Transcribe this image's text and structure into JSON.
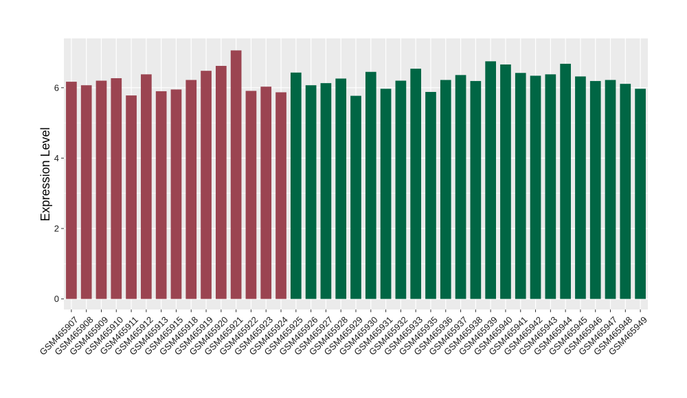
{
  "chart_data": {
    "type": "bar",
    "title": "",
    "xlabel": "",
    "ylabel": "Expression Level",
    "ylim": [
      -0.3,
      7.4
    ],
    "yticks": [
      0,
      2,
      4,
      6
    ],
    "grid": true,
    "legend": "none",
    "categories": [
      "GSM465907",
      "GSM465908",
      "GSM465909",
      "GSM465910",
      "GSM465911",
      "GSM465912",
      "GSM465913",
      "GSM465915",
      "GSM465918",
      "GSM465919",
      "GSM465920",
      "GSM465921",
      "GSM465922",
      "GSM465923",
      "GSM465924",
      "GSM465925",
      "GSM465926",
      "GSM465927",
      "GSM465928",
      "GSM465929",
      "GSM465930",
      "GSM465931",
      "GSM465932",
      "GSM465933",
      "GSM465935",
      "GSM465936",
      "GSM465937",
      "GSM465938",
      "GSM465939",
      "GSM465940",
      "GSM465941",
      "GSM465942",
      "GSM465943",
      "GSM465944",
      "GSM465945",
      "GSM465946",
      "GSM465947",
      "GSM465948",
      "GSM465949"
    ],
    "values": [
      6.17,
      6.07,
      6.2,
      6.27,
      5.78,
      6.38,
      5.9,
      5.95,
      6.22,
      6.48,
      6.62,
      7.06,
      5.91,
      6.03,
      5.87,
      6.43,
      6.07,
      6.13,
      6.26,
      5.77,
      6.45,
      5.97,
      6.2,
      6.54,
      5.88,
      6.22,
      6.36,
      6.19,
      6.75,
      6.66,
      6.42,
      6.34,
      6.38,
      6.68,
      6.32,
      6.19,
      6.22,
      6.11,
      5.97
    ],
    "group_sizes": [
      15,
      24
    ],
    "colors": [
      "#9b4451",
      "#006644"
    ],
    "panel_background": "#ebebeb",
    "grid_color": "#ffffff"
  }
}
